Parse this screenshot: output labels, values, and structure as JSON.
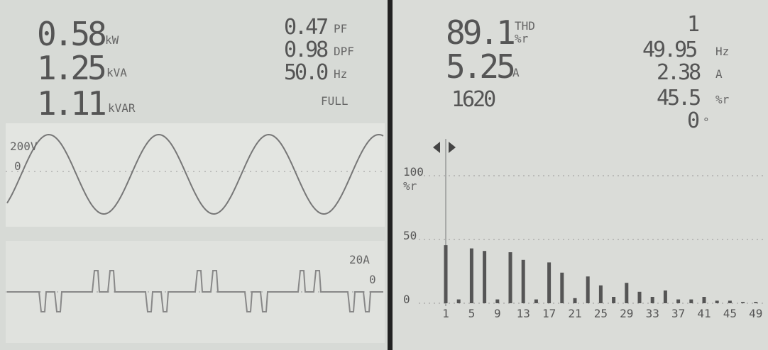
{
  "left_screen": {
    "readings": [
      {
        "value": "0.58",
        "unit": "kW"
      },
      {
        "value": "1.25",
        "unit": "kVA"
      },
      {
        "value": "1.11",
        "unit": "kVAR"
      }
    ],
    "side_readings": [
      {
        "value": "0.47",
        "unit": "PF"
      },
      {
        "value": "0.98",
        "unit": "DPF"
      },
      {
        "value": "50.0",
        "unit": "Hz"
      }
    ],
    "mode": "FULL",
    "voltage_scale": "200V",
    "voltage_zero": "0",
    "current_scale": "20A",
    "current_zero": "0"
  },
  "right_screen": {
    "thd": {
      "value": "89.1",
      "unit": "THD",
      "unit2": "%r"
    },
    "current": {
      "value": "5.25",
      "unit": "A"
    },
    "peak": "1620",
    "cursor": "1",
    "side_readings": [
      {
        "value": "49.95",
        "unit": "Hz"
      },
      {
        "value": "2.38",
        "unit": "A"
      },
      {
        "value": "45.5",
        "unit": "%r"
      },
      {
        "value": "0",
        "unit": "°"
      }
    ]
  },
  "chart_data": {
    "type": "bar",
    "y_label": "%r",
    "categories": [
      1,
      null,
      5,
      null,
      9,
      null,
      13,
      null,
      17,
      null,
      21,
      null,
      25,
      null,
      29,
      null,
      33,
      null,
      37,
      null,
      41,
      null,
      45,
      null,
      49
    ],
    "values": [
      45.5,
      3,
      43,
      41,
      3,
      40,
      34,
      3,
      32,
      24,
      4,
      21,
      14,
      5,
      16,
      9,
      5,
      10,
      3,
      3,
      5,
      2,
      2,
      1,
      1
    ],
    "color": "#555",
    "ylim": [
      0,
      100
    ],
    "yticks": [
      0,
      50,
      100
    ]
  }
}
